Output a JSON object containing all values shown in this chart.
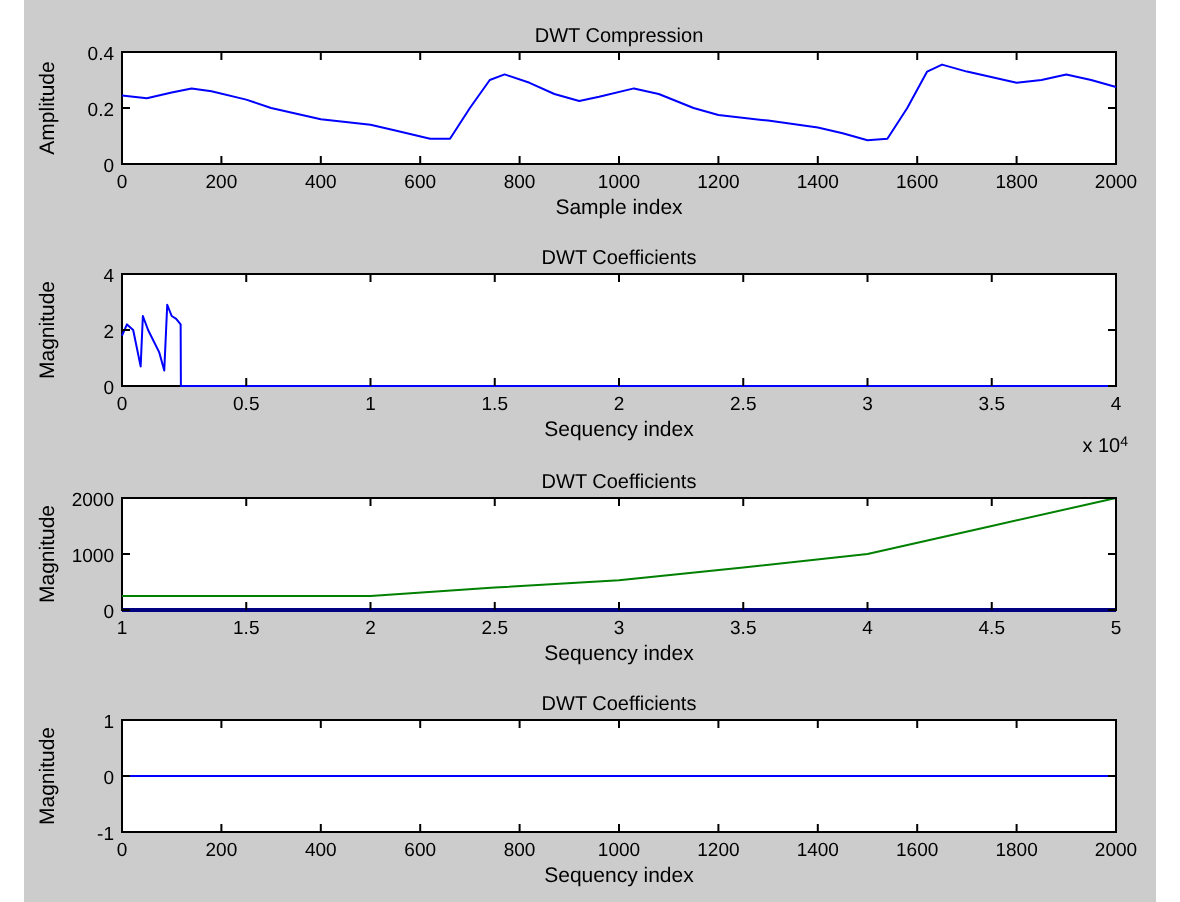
{
  "chart_data": [
    {
      "type": "line",
      "title": "DWT Compression",
      "xlabel": "Sample index",
      "ylabel": "Amplitude",
      "xlim": [
        0,
        2000
      ],
      "xticks": [
        0,
        200,
        400,
        600,
        800,
        1000,
        1200,
        1400,
        1600,
        1800,
        2000
      ],
      "ylim": [
        0,
        0.4
      ],
      "yticks": [
        0,
        0.2,
        0.4
      ],
      "series": [
        {
          "color": "#0000ff",
          "x": [
            0,
            50,
            100,
            140,
            180,
            250,
            300,
            400,
            500,
            550,
            620,
            660,
            700,
            740,
            770,
            820,
            870,
            920,
            960,
            1030,
            1080,
            1150,
            1200,
            1300,
            1400,
            1450,
            1500,
            1540,
            1580,
            1620,
            1650,
            1700,
            1800,
            1850,
            1900,
            1950,
            2000
          ],
          "values": [
            0.245,
            0.235,
            0.255,
            0.27,
            0.26,
            0.23,
            0.2,
            0.16,
            0.14,
            0.12,
            0.09,
            0.09,
            0.2,
            0.3,
            0.32,
            0.29,
            0.25,
            0.225,
            0.24,
            0.27,
            0.25,
            0.2,
            0.175,
            0.155,
            0.13,
            0.11,
            0.085,
            0.09,
            0.2,
            0.33,
            0.355,
            0.33,
            0.29,
            0.3,
            0.32,
            0.3,
            0.275
          ]
        }
      ]
    },
    {
      "type": "line",
      "title": "DWT Coefficients",
      "xlabel": "Sequency index",
      "ylabel": "Magnitude",
      "xlim": [
        0,
        4
      ],
      "xticks": [
        0,
        0.5,
        1,
        1.5,
        2,
        2.5,
        3,
        3.5,
        4
      ],
      "ylim": [
        0,
        4
      ],
      "yticks": [
        0,
        2,
        4
      ],
      "annotations": [
        "x 10$^{4}$"
      ],
      "series": [
        {
          "color": "#0000ff",
          "x": [
            0,
            0.02,
            0.045,
            0.075,
            0.084,
            0.105,
            0.15,
            0.17,
            0.182,
            0.2,
            0.218,
            0.236,
            0.237,
            4
          ],
          "values": [
            1.8,
            2.2,
            2.0,
            0.7,
            2.5,
            2.0,
            1.2,
            0.55,
            2.9,
            2.5,
            2.4,
            2.2,
            0,
            0
          ]
        }
      ]
    },
    {
      "type": "line",
      "title": "DWT Coefficients",
      "xlabel": "Sequency index",
      "ylabel": "Magnitude",
      "xlim": [
        1,
        5
      ],
      "xticks": [
        1,
        1.5,
        2,
        2.5,
        3,
        3.5,
        4,
        4.5,
        5
      ],
      "ylim": [
        0,
        2000
      ],
      "yticks": [
        0,
        1000,
        2000
      ],
      "series": [
        {
          "color": "#008000",
          "x": [
            1,
            2,
            2.5,
            3,
            3.5,
            4,
            4.5,
            5
          ],
          "values": [
            250,
            250,
            400,
            530,
            760,
            1000,
            1500,
            2000
          ]
        },
        {
          "color": "#000080",
          "x": [
            1,
            5
          ],
          "values": [
            0,
            0
          ]
        }
      ]
    },
    {
      "type": "line",
      "title": "DWT Coefficients",
      "xlabel": "Sequency index",
      "ylabel": "Magnitude",
      "xlim": [
        0,
        2000
      ],
      "xticks": [
        0,
        200,
        400,
        600,
        800,
        1000,
        1200,
        1400,
        1600,
        1800,
        2000
      ],
      "ylim": [
        -1,
        1
      ],
      "yticks": [
        -1,
        0,
        1
      ],
      "series": [
        {
          "color": "#0000ff",
          "x": [
            0,
            2000
          ],
          "values": [
            0,
            0
          ]
        }
      ]
    }
  ]
}
